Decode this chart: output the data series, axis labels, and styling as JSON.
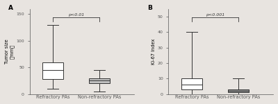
{
  "panel_A": {
    "label": "A",
    "ylabel": "Tumor size（mm）",
    "groups": [
      "Refractory PAs",
      "Non-refractory PAs"
    ],
    "boxes": [
      {
        "q1": 28,
        "median": 45,
        "q3": 60,
        "whisker_low": 10,
        "whisker_high": 130
      },
      {
        "q1": 20,
        "median": 25,
        "q3": 30,
        "whisker_low": 5,
        "whisker_high": 45
      }
    ],
    "ylim": [
      0,
      160
    ],
    "yticks": [
      0,
      50,
      100,
      150
    ],
    "pvalue": "p<0.01",
    "box_colors": [
      "white",
      "#c0c0c0"
    ]
  },
  "panel_B": {
    "label": "B",
    "ylabel": "Ki-67 Index",
    "groups": [
      "Refractory PAs",
      "Non-refractory PAs"
    ],
    "boxes": [
      {
        "q1": 3,
        "median": 6,
        "q3": 10,
        "whisker_low": 0,
        "whisker_high": 40
      },
      {
        "q1": 1,
        "median": 2,
        "q3": 3,
        "whisker_low": 0,
        "whisker_high": 10
      }
    ],
    "ylim": [
      0,
      55
    ],
    "yticks": [
      0,
      10,
      20,
      30,
      40,
      50
    ],
    "pvalue": "p<0.001",
    "box_colors": [
      "white",
      "#989898"
    ]
  },
  "bg_color": "#e8e4e0",
  "lw": 0.7,
  "fontsize_ylabel": 4.8,
  "fontsize_tick": 4.5,
  "fontsize_pvalue": 4.5,
  "fontsize_panel": 6.5,
  "fontsize_xticklabel": 4.8
}
